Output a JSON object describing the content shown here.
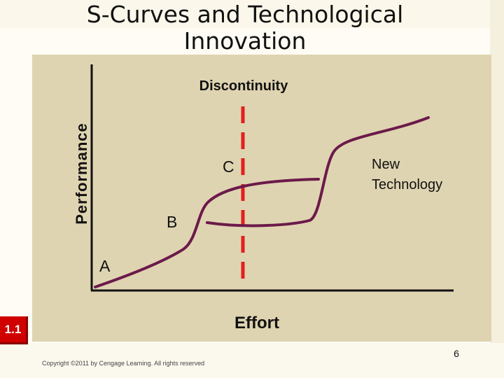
{
  "slide": {
    "title": "S-Curves and Technological Innovation",
    "badge": "1.1",
    "page_number": "6",
    "copyright": "Copyright ©2011 by Cengage Learning. All rights reserved"
  },
  "diagram": {
    "y_axis_label": "Performance",
    "x_axis_label": "Effort",
    "discontinuity_label": "Discontinuity",
    "point_labels": {
      "a": "A",
      "b": "B",
      "c": "C"
    },
    "new_technology_label_line1": "New",
    "new_technology_label_line2": "Technology",
    "colors": {
      "curve": "#6b1a4a",
      "discontinuity": "#e0201c",
      "axis": "#111111",
      "panel": "#dfd4b1"
    }
  }
}
